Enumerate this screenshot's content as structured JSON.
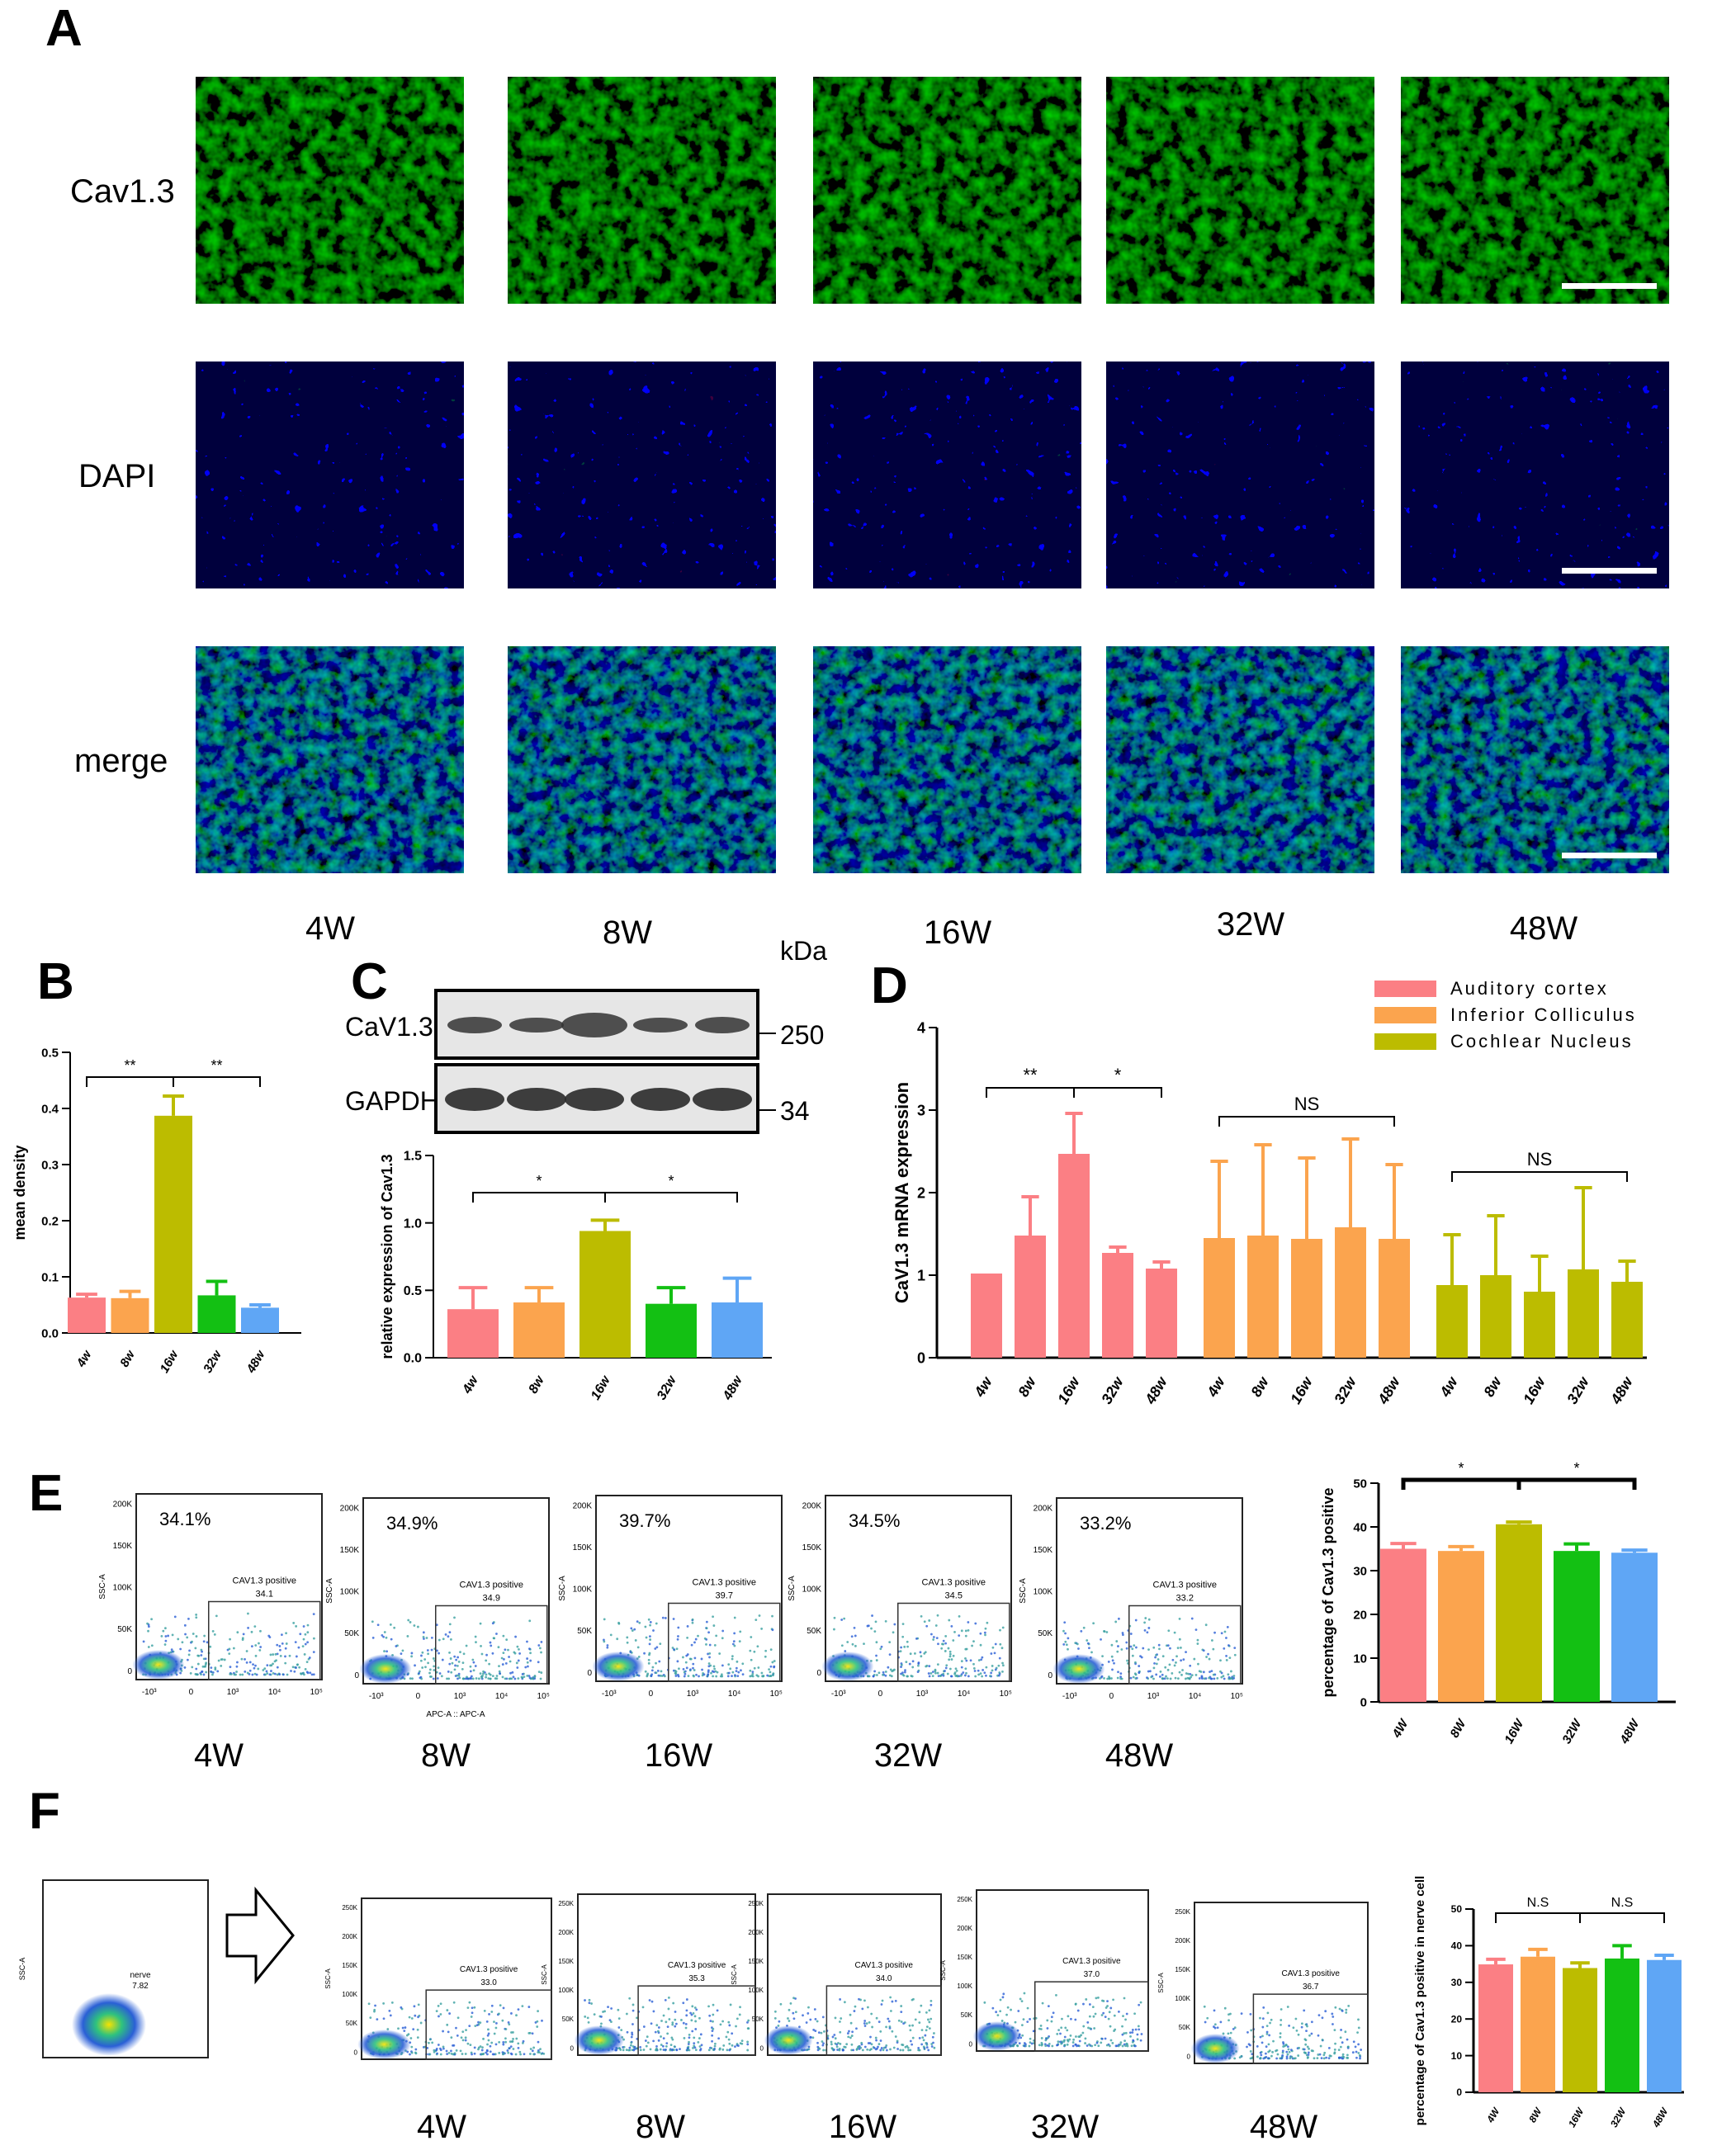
{
  "panel_letters": {
    "A": "A",
    "B": "B",
    "C": "C",
    "D": "D",
    "E": "E",
    "F": "F"
  },
  "colors": {
    "g4": "#fb7f84",
    "g8": "#fba44e",
    "g16": "#bcbc00",
    "g32": "#13c013",
    "g48": "#5fa6f5"
  },
  "panelA": {
    "rows": [
      "Cav1.3",
      "DAPI",
      "merge"
    ],
    "columns": [
      "4W",
      "8W",
      "16W",
      "32W",
      "48W"
    ]
  },
  "panelC": {
    "unit_label": "kDa",
    "blot_rows": [
      {
        "label": "CaV1.3",
        "kda": "250"
      },
      {
        "label": "GAPDH",
        "kda": "34"
      }
    ]
  },
  "panelE": {
    "percents": [
      "34.1%",
      "34.9%",
      "39.7%",
      "34.5%",
      "33.2%"
    ],
    "gate_label": "CAV1.3 positive",
    "gate_values": [
      "34.1",
      "34.9",
      "39.7",
      "34.5",
      "33.2"
    ],
    "ylabel": "SSC-A",
    "xlabel_second": "APC-A :: APC-A",
    "yticks": [
      "200K",
      "150K",
      "100K",
      "50K",
      "0"
    ],
    "xticks": [
      "-10³",
      "0",
      "10³",
      "10⁴",
      "10⁵"
    ],
    "columns": [
      "4W",
      "8W",
      "16W",
      "32W",
      "48W"
    ]
  },
  "panelF": {
    "first_gate_label": "nerve",
    "first_gate_value": "7.82",
    "gate_label": "CAV1.3 positive",
    "gate_values": [
      "33.0",
      "35.3",
      "34.0",
      "37.0",
      "36.7"
    ],
    "ylabel": "SSC-A",
    "yticks": [
      "250K",
      "200K",
      "150K",
      "100K",
      "50K",
      "0"
    ],
    "columns": [
      "4W",
      "8W",
      "16W",
      "32W",
      "48W"
    ]
  },
  "chart_data": [
    {
      "id": "B",
      "type": "bar",
      "categories": [
        "4w",
        "8w",
        "16w",
        "32w",
        "48w"
      ],
      "values": [
        0.063,
        0.062,
        0.387,
        0.067,
        0.045
      ],
      "errors": [
        0.006,
        0.012,
        0.035,
        0.025,
        0.005
      ],
      "ylabel": "mean density",
      "ylim": [
        0,
        0.5
      ],
      "yticks": [
        "0.0",
        "0.1",
        "0.2",
        "0.3",
        "0.4",
        "0.5"
      ],
      "significance": [
        {
          "from": 0,
          "to": 2,
          "label": "**"
        },
        {
          "from": 2,
          "to": 4,
          "label": "**"
        }
      ]
    },
    {
      "id": "C",
      "type": "bar",
      "categories": [
        "4w",
        "8w",
        "16w",
        "32w",
        "48w"
      ],
      "values": [
        0.36,
        0.41,
        0.94,
        0.4,
        0.41
      ],
      "errors": [
        0.16,
        0.11,
        0.08,
        0.12,
        0.18
      ],
      "ylabel": "relative expression of Cav1.3",
      "ylim": [
        0,
        1.5
      ],
      "yticks": [
        "0.0",
        "0.5",
        "1.0",
        "1.5"
      ],
      "significance": [
        {
          "from": 0,
          "to": 2,
          "label": "*"
        },
        {
          "from": 2,
          "to": 4,
          "label": "*"
        }
      ]
    },
    {
      "id": "D",
      "type": "bar",
      "categories": [
        "4w",
        "8w",
        "16w",
        "32w",
        "48w"
      ],
      "series": [
        {
          "name": "Auditory cortex",
          "values": [
            1.02,
            1.48,
            2.47,
            1.27,
            1.08
          ],
          "errors": [
            0,
            0.47,
            0.49,
            0.07,
            0.08
          ]
        },
        {
          "name": "Inferior Colliculus",
          "values": [
            1.45,
            1.48,
            1.44,
            1.58,
            1.44
          ],
          "errors": [
            0.93,
            1.1,
            0.98,
            1.07,
            0.9
          ]
        },
        {
          "name": "Cochlear Nucleus",
          "values": [
            0.88,
            1.0,
            0.8,
            1.07,
            0.92
          ],
          "errors": [
            0.61,
            0.72,
            0.43,
            0.99,
            0.25
          ]
        }
      ],
      "ylabel": "CaV1.3 mRNA expression",
      "ylim": [
        0,
        4
      ],
      "yticks": [
        "0",
        "1",
        "2",
        "3",
        "4"
      ],
      "legend_position": "top-right",
      "significance": [
        {
          "series": 0,
          "from": 0,
          "to": 2,
          "label": "**"
        },
        {
          "series": 0,
          "from": 2,
          "to": 4,
          "label": "*"
        },
        {
          "series": 1,
          "from": 0,
          "to": 4,
          "label": "NS"
        },
        {
          "series": 2,
          "from": 0,
          "to": 4,
          "label": "NS"
        }
      ]
    },
    {
      "id": "E",
      "type": "bar",
      "categories": [
        "4W",
        "8W",
        "16W",
        "32W",
        "48W"
      ],
      "values": [
        35.0,
        34.5,
        40.6,
        34.5,
        34.1
      ],
      "errors": [
        1.2,
        1.0,
        0.5,
        1.6,
        0.6
      ],
      "ylabel": "percentage of Cav1.3 positive",
      "ylim": [
        0,
        50
      ],
      "yticks": [
        "0",
        "10",
        "20",
        "30",
        "40",
        "50"
      ],
      "significance": [
        {
          "from": 0,
          "to": 2,
          "label": "*"
        },
        {
          "from": 2,
          "to": 4,
          "label": "*"
        }
      ]
    },
    {
      "id": "F",
      "type": "bar",
      "categories": [
        "4W",
        "8W",
        "16W",
        "32W",
        "48W"
      ],
      "values": [
        34.9,
        37.0,
        33.9,
        36.5,
        36.1
      ],
      "errors": [
        1.4,
        2.0,
        1.4,
        3.5,
        1.3
      ],
      "ylabel": "percentage of Cav1.3 positive in nerve cell",
      "ylim": [
        0,
        50
      ],
      "yticks": [
        "0",
        "10",
        "20",
        "30",
        "40",
        "50"
      ],
      "significance": [
        {
          "from": 0,
          "to": 2,
          "label": "N.S"
        },
        {
          "from": 2,
          "to": 4,
          "label": "N.S"
        }
      ]
    }
  ]
}
